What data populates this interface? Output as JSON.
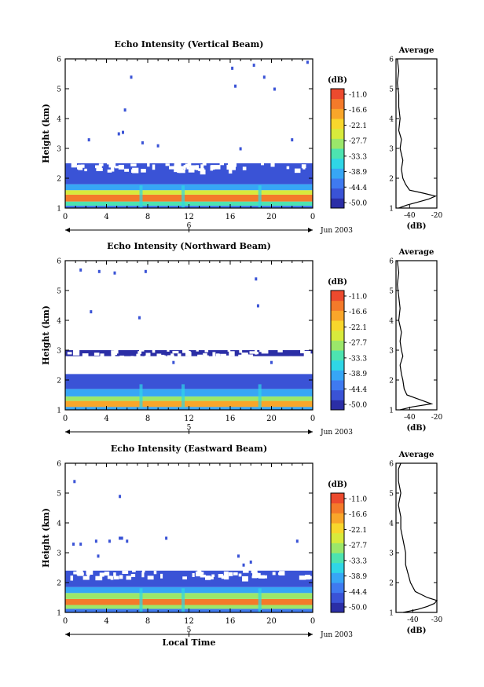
{
  "chart_data": [
    {
      "type": "heatmap",
      "title": "Echo Intensity (Vertical Beam)",
      "ylabel": "Height (km)",
      "xlabel": "",
      "x_ticks": [
        "0",
        "4",
        "8",
        "12",
        "16",
        "20",
        "0"
      ],
      "y_ticks": [
        "1",
        "2",
        "3",
        "4",
        "5",
        "6"
      ],
      "xlim": [
        0,
        24
      ],
      "ylim": [
        1,
        6
      ],
      "date_label": "Jun 2003",
      "day_label": "6",
      "colorbar_label": "(dB)",
      "colorbar_ticks": [
        "-11.0",
        "-16.6",
        "-22.1",
        "-27.7",
        "-33.3",
        "-38.9",
        "-44.4",
        "-50.0"
      ],
      "layers": [
        {
          "y": [
            1.0,
            1.08
          ],
          "level": 2
        },
        {
          "y": [
            1.08,
            1.22
          ],
          "level": 5
        },
        {
          "y": [
            1.22,
            1.45
          ],
          "level": 10
        },
        {
          "y": [
            1.45,
            1.6
          ],
          "level": 7
        },
        {
          "y": [
            1.6,
            1.8
          ],
          "level": 3
        },
        {
          "y": [
            1.8,
            2.5
          ],
          "level": 1
        }
      ],
      "echoes": [
        {
          "x": 5.2,
          "y": 3.5
        },
        {
          "x": 5.6,
          "y": 3.55
        },
        {
          "x": 2.3,
          "y": 3.3
        },
        {
          "x": 7.5,
          "y": 3.2
        },
        {
          "x": 9.0,
          "y": 3.1
        },
        {
          "x": 17.0,
          "y": 3.0
        },
        {
          "x": 22.0,
          "y": 3.3
        },
        {
          "x": 5.8,
          "y": 4.3
        },
        {
          "x": 6.4,
          "y": 5.4
        },
        {
          "x": 16.2,
          "y": 5.7
        },
        {
          "x": 16.5,
          "y": 5.1
        },
        {
          "x": 18.3,
          "y": 5.8
        },
        {
          "x": 19.3,
          "y": 5.4
        },
        {
          "x": 20.3,
          "y": 5.0
        },
        {
          "x": 23.5,
          "y": 5.9
        }
      ],
      "average_profile": {
        "title": "Average",
        "xlabel": "(dB)",
        "x_ticks": [
          "-40",
          "-20"
        ],
        "xlim": [
          -50,
          -20
        ],
        "ylim": [
          1,
          6
        ],
        "y_ticks": [
          "1",
          "2",
          "3",
          "4",
          "5",
          "6"
        ],
        "heights": [
          1.0,
          1.1,
          1.2,
          1.3,
          1.4,
          1.5,
          1.6,
          1.8,
          2.0,
          2.3,
          2.6,
          3.0,
          3.3,
          3.6,
          4.0,
          4.4,
          4.8,
          5.2,
          5.6,
          6.0
        ],
        "values": [
          -48,
          -42,
          -34,
          -26,
          -21,
          -30,
          -40,
          -43,
          -45,
          -46,
          -45,
          -47,
          -46,
          -48,
          -47,
          -48,
          -48,
          -49,
          -48,
          -49
        ]
      }
    },
    {
      "type": "heatmap",
      "title": "Echo Intensity (Northward Beam)",
      "ylabel": "Height (km)",
      "xlabel": "",
      "x_ticks": [
        "0",
        "4",
        "8",
        "12",
        "16",
        "20",
        "0"
      ],
      "y_ticks": [
        "1",
        "2",
        "3",
        "4",
        "5",
        "6"
      ],
      "xlim": [
        0,
        24
      ],
      "ylim": [
        1,
        6
      ],
      "date_label": "Jun 2003",
      "day_label": "5",
      "colorbar_label": "(dB)",
      "colorbar_ticks": [
        "-11.0",
        "-16.6",
        "-22.1",
        "-27.7",
        "-33.3",
        "-38.9",
        "-44.4",
        "-50.0"
      ],
      "layers": [
        {
          "y": [
            1.0,
            1.1
          ],
          "level": 3
        },
        {
          "y": [
            1.1,
            1.3
          ],
          "level": 9
        },
        {
          "y": [
            1.3,
            1.45
          ],
          "level": 6
        },
        {
          "y": [
            1.45,
            1.7
          ],
          "level": 3
        },
        {
          "y": [
            1.7,
            2.2
          ],
          "level": 1
        },
        {
          "y": [
            2.8,
            3.0
          ],
          "level": 0
        }
      ],
      "echoes": [
        {
          "x": 1.5,
          "y": 5.7
        },
        {
          "x": 3.3,
          "y": 5.65
        },
        {
          "x": 4.8,
          "y": 5.6
        },
        {
          "x": 7.8,
          "y": 5.65
        },
        {
          "x": 2.5,
          "y": 4.3
        },
        {
          "x": 7.2,
          "y": 4.1
        },
        {
          "x": 18.5,
          "y": 5.4
        },
        {
          "x": 18.7,
          "y": 4.5
        },
        {
          "x": 20.0,
          "y": 2.6
        },
        {
          "x": 10.5,
          "y": 2.6
        }
      ],
      "average_profile": {
        "title": "Average",
        "xlabel": "(dB)",
        "x_ticks": [
          "-40",
          "-20"
        ],
        "xlim": [
          -50,
          -20
        ],
        "ylim": [
          1,
          6
        ],
        "y_ticks": [
          "1",
          "2",
          "3",
          "4",
          "5",
          "6"
        ],
        "heights": [
          1.0,
          1.1,
          1.2,
          1.3,
          1.4,
          1.5,
          1.7,
          2.0,
          2.2,
          2.5,
          2.8,
          3.0,
          3.3,
          3.6,
          4.0,
          4.4,
          4.8,
          5.2,
          5.6,
          6.0
        ],
        "values": [
          -47,
          -38,
          -24,
          -30,
          -36,
          -42,
          -44,
          -45,
          -46,
          -47,
          -45,
          -46,
          -47,
          -46,
          -48,
          -47,
          -48,
          -49,
          -48,
          -49
        ]
      }
    },
    {
      "type": "heatmap",
      "title": "Echo Intensity (Eastward Beam)",
      "ylabel": "Height (km)",
      "xlabel": "Local Time",
      "x_ticks": [
        "0",
        "4",
        "8",
        "12",
        "16",
        "20",
        "0"
      ],
      "y_ticks": [
        "1",
        "2",
        "3",
        "4",
        "5",
        "6"
      ],
      "xlim": [
        0,
        24
      ],
      "ylim": [
        1,
        6
      ],
      "date_label": "Jun 2003",
      "day_label": "5",
      "colorbar_label": "(dB)",
      "colorbar_ticks": [
        "-11.0",
        "-16.6",
        "-22.1",
        "-27.7",
        "-33.3",
        "-38.9",
        "-44.4",
        "-50.0"
      ],
      "layers": [
        {
          "y": [
            1.0,
            1.12
          ],
          "level": 2
        },
        {
          "y": [
            1.12,
            1.25
          ],
          "level": 6
        },
        {
          "y": [
            1.25,
            1.45
          ],
          "level": 10
        },
        {
          "y": [
            1.45,
            1.65
          ],
          "level": 6
        },
        {
          "y": [
            1.65,
            1.85
          ],
          "level": 3
        },
        {
          "y": [
            1.85,
            2.4
          ],
          "level": 1
        }
      ],
      "echoes": [
        {
          "x": 0.9,
          "y": 5.4
        },
        {
          "x": 0.8,
          "y": 3.3
        },
        {
          "x": 1.5,
          "y": 3.3
        },
        {
          "x": 3.0,
          "y": 3.4
        },
        {
          "x": 4.3,
          "y": 3.4
        },
        {
          "x": 5.3,
          "y": 3.5
        },
        {
          "x": 5.5,
          "y": 3.5
        },
        {
          "x": 6.0,
          "y": 3.4
        },
        {
          "x": 9.8,
          "y": 3.5
        },
        {
          "x": 22.5,
          "y": 3.4
        },
        {
          "x": 5.3,
          "y": 4.9
        },
        {
          "x": 3.2,
          "y": 2.9
        },
        {
          "x": 16.8,
          "y": 2.9
        },
        {
          "x": 17.3,
          "y": 2.6
        },
        {
          "x": 18.0,
          "y": 2.7
        }
      ],
      "average_profile": {
        "title": "Average",
        "xlabel": "(dB)",
        "x_ticks": [
          "-40",
          "-30"
        ],
        "xlim": [
          -47,
          -30
        ],
        "ylim": [
          1,
          6
        ],
        "y_ticks": [
          "1",
          "2",
          "3",
          "4",
          "5",
          "6"
        ],
        "heights": [
          1.0,
          1.1,
          1.2,
          1.3,
          1.4,
          1.5,
          1.7,
          2.0,
          2.3,
          2.6,
          3.0,
          3.4,
          3.8,
          4.2,
          4.6,
          5.0,
          5.4,
          5.8,
          6.0
        ],
        "values": [
          -44,
          -38,
          -34,
          -31,
          -30,
          -34,
          -39,
          -41,
          -42,
          -43,
          -43,
          -44,
          -45,
          -45,
          -46,
          -45,
          -46,
          -46,
          -45
        ]
      }
    }
  ],
  "figure": {
    "colorscale": [
      "#2b2ea6",
      "#3a53d6",
      "#3f7af0",
      "#37a6f5",
      "#2fd6e6",
      "#4de3b0",
      "#9be76a",
      "#d8ea3c",
      "#f8d72c",
      "#f9a62a",
      "#f47a2a",
      "#ec4a2e"
    ],
    "accent_text": "#000000"
  }
}
